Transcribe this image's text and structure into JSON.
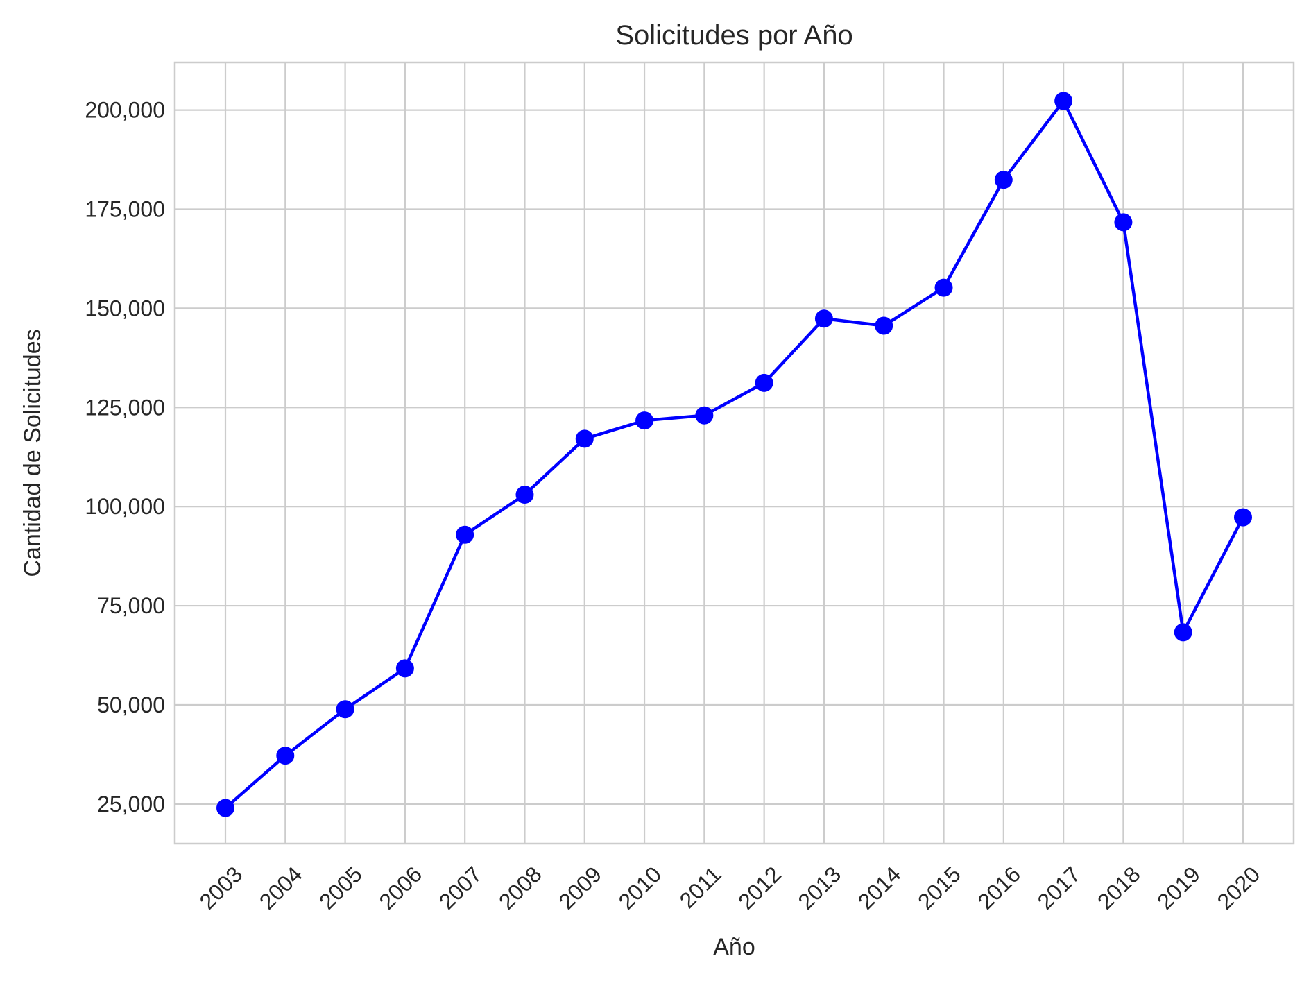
{
  "chart_data": {
    "type": "line",
    "title": "Solicitudes por Año",
    "xlabel": "Año",
    "ylabel": "Cantidad de Solicitudes",
    "categories": [
      "2003",
      "2004",
      "2005",
      "2006",
      "2007",
      "2008",
      "2009",
      "2010",
      "2011",
      "2012",
      "2013",
      "2014",
      "2015",
      "2016",
      "2017",
      "2018",
      "2019",
      "2020"
    ],
    "series": [
      {
        "values": [
          24000,
          37200,
          48900,
          59200,
          92900,
          103000,
          117100,
          121700,
          123000,
          131200,
          147400,
          145600,
          155200,
          182400,
          202300,
          171700,
          68300,
          97300
        ]
      }
    ],
    "ylim": [
      15000,
      212000
    ],
    "yticks": [
      25000,
      50000,
      75000,
      100000,
      125000,
      150000,
      175000,
      200000
    ],
    "ytick_labels": [
      "25,000",
      "50,000",
      "75,000",
      "100,000",
      "125,000",
      "150,000",
      "175,000",
      "200,000"
    ],
    "grid": true,
    "line_color": "#0000ff",
    "marker": "circle",
    "xtick_rotation": 45
  }
}
